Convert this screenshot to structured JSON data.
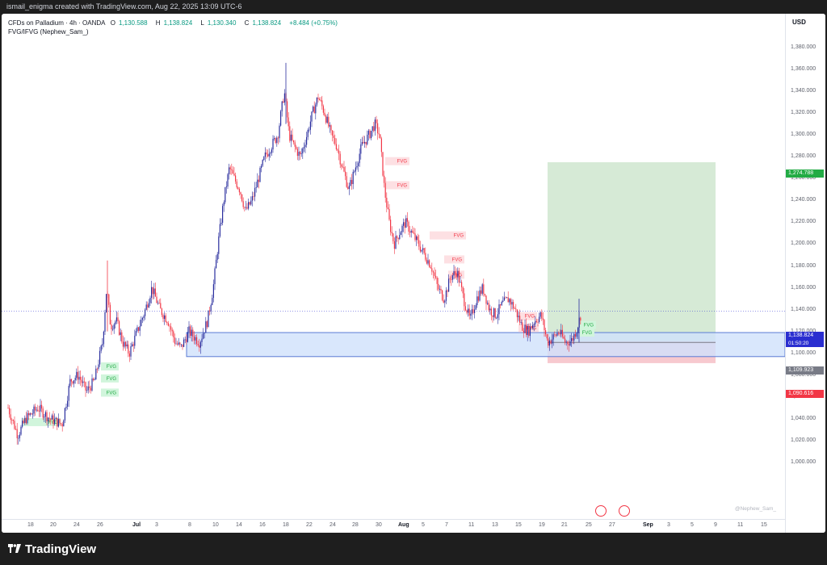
{
  "header": {
    "caption": "ismail_enigma created with TradingView.com, Aug 22, 2025 13:09 UTC-6"
  },
  "legend": {
    "symbol": "CFDs on Palladium · 4h · OANDA",
    "o_label": "O",
    "o_value": "1,130.588",
    "h_label": "H",
    "h_value": "1,138.824",
    "l_label": "L",
    "l_value": "1,130.340",
    "c_label": "C",
    "c_value": "1,138.824",
    "change": "+8.484 (+0.75%)",
    "indicator": "FVG/IFVG (Nephew_Sam_)"
  },
  "price_axis": {
    "currency": "USD",
    "ticks": [
      "1,380.000",
      "1,360.000",
      "1,340.000",
      "1,320.000",
      "1,300.000",
      "1,280.000",
      "1,260.000",
      "1,240.000",
      "1,220.000",
      "1,200.000",
      "1,180.000",
      "1,160.000",
      "1,140.000",
      "1,120.000",
      "1,100.000",
      "1,080.000",
      "1,060.000",
      "1,040.000",
      "1,020.000",
      "1,000.000"
    ],
    "tags": {
      "target": "1,274.788",
      "last_price": "1,138.824",
      "countdown": "01:50:20",
      "entry": "1,109.923",
      "stop": "1,090.616"
    }
  },
  "time_axis": {
    "labels": [
      {
        "t": "18",
        "bold": false
      },
      {
        "t": "20",
        "bold": false
      },
      {
        "t": "24",
        "bold": false
      },
      {
        "t": "26",
        "bold": false
      },
      {
        "t": "Jul",
        "bold": true
      },
      {
        "t": "3",
        "bold": false
      },
      {
        "t": "8",
        "bold": false
      },
      {
        "t": "10",
        "bold": false
      },
      {
        "t": "14",
        "bold": false
      },
      {
        "t": "16",
        "bold": false
      },
      {
        "t": "18",
        "bold": false
      },
      {
        "t": "22",
        "bold": false
      },
      {
        "t": "24",
        "bold": false
      },
      {
        "t": "28",
        "bold": false
      },
      {
        "t": "30",
        "bold": false
      },
      {
        "t": "Aug",
        "bold": true
      },
      {
        "t": "5",
        "bold": false
      },
      {
        "t": "7",
        "bold": false
      },
      {
        "t": "11",
        "bold": false
      },
      {
        "t": "13",
        "bold": false
      },
      {
        "t": "15",
        "bold": false
      },
      {
        "t": "19",
        "bold": false
      },
      {
        "t": "21",
        "bold": false
      },
      {
        "t": "25",
        "bold": false
      },
      {
        "t": "27",
        "bold": false
      },
      {
        "t": "Sep",
        "bold": true
      },
      {
        "t": "3",
        "bold": false
      },
      {
        "t": "5",
        "bold": false
      },
      {
        "t": "9",
        "bold": false
      },
      {
        "t": "11",
        "bold": false
      },
      {
        "t": "15",
        "bold": false
      }
    ]
  },
  "fvg_label": "FVG",
  "watermark": "@Nephew_Sam_",
  "brand": "TradingView",
  "colors": {
    "up": "#2a2e9e",
    "down": "#f23645",
    "fvg_bull": "#d1f5dc",
    "fvg_bear": "#fde0e3",
    "target_zone": "#d6ead6",
    "stop_zone": "#f7c9cf",
    "demand_zone": "#cfe1fb"
  }
}
